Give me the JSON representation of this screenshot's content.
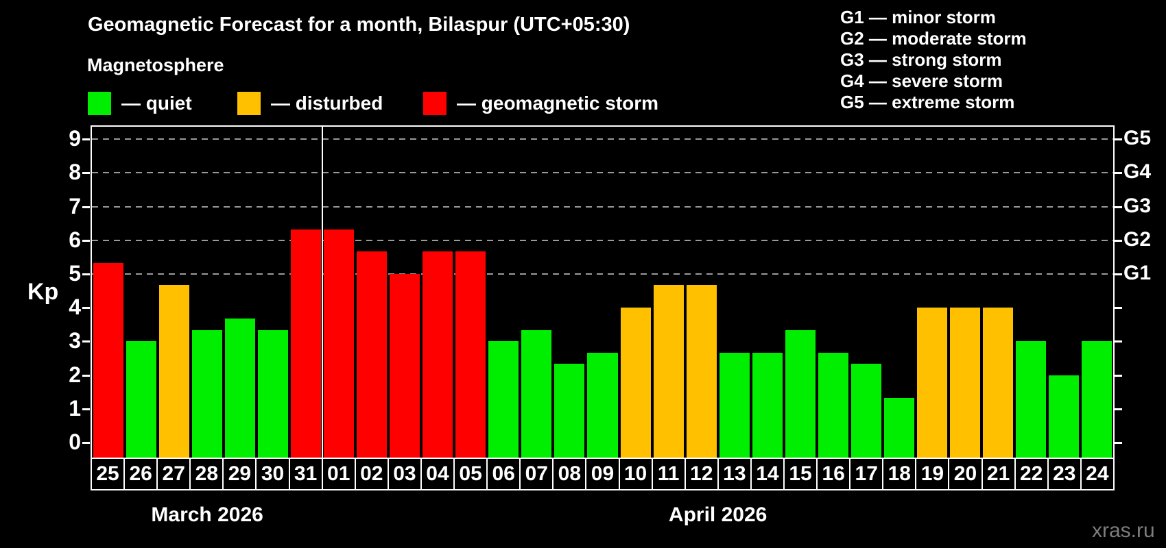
{
  "header": {
    "title": "Geomagnetic Forecast for a month, Bilaspur (UTC+05:30)",
    "subtitle": "Magnetosphere"
  },
  "legend": {
    "items": [
      {
        "key": "quiet",
        "label": "— quiet",
        "color": "#00ee00"
      },
      {
        "key": "disturbed",
        "label": "— disturbed",
        "color": "#ffc000"
      },
      {
        "key": "storm",
        "label": "— geomagnetic storm",
        "color": "#ff0000"
      }
    ]
  },
  "g_legend": [
    "G1 — minor storm",
    "G2 — moderate storm",
    "G3 — strong storm",
    "G4 — severe storm",
    "G5 — extreme storm"
  ],
  "watermark": "xras.ru",
  "chart_data": {
    "type": "bar",
    "title": "Geomagnetic Forecast for a month, Bilaspur (UTC+05:30)",
    "ylabel": "Kp",
    "ylim": [
      0,
      9
    ],
    "y_ticks": [
      0,
      1,
      2,
      3,
      4,
      5,
      6,
      7,
      8,
      9
    ],
    "grid": "dashed-horizontal",
    "grid_levels": [
      5,
      6,
      7,
      8,
      9
    ],
    "right_axis_labels": [
      "G1",
      "G2",
      "G3",
      "G4",
      "G5"
    ],
    "right_axis_levels": [
      5,
      6,
      7,
      8,
      9
    ],
    "legend_position": "top-left",
    "categories": [
      "25",
      "26",
      "27",
      "28",
      "29",
      "30",
      "31",
      "01",
      "02",
      "03",
      "04",
      "05",
      "06",
      "07",
      "08",
      "09",
      "10",
      "11",
      "12",
      "13",
      "14",
      "15",
      "16",
      "17",
      "18",
      "19",
      "20",
      "21",
      "22",
      "23",
      "24"
    ],
    "values": [
      5.33,
      3,
      4.67,
      3.33,
      3.67,
      3.33,
      6.33,
      6.33,
      5.67,
      5,
      5.67,
      5.67,
      3,
      3.33,
      2.33,
      2.67,
      4,
      4.67,
      4.67,
      2.67,
      2.67,
      3.33,
      2.67,
      2.33,
      1.33,
      4,
      4,
      4,
      3,
      2,
      3
    ],
    "statuses": [
      "storm",
      "quiet",
      "disturbed",
      "quiet",
      "quiet",
      "quiet",
      "storm",
      "storm",
      "storm",
      "storm",
      "storm",
      "storm",
      "quiet",
      "quiet",
      "quiet",
      "quiet",
      "disturbed",
      "disturbed",
      "disturbed",
      "quiet",
      "quiet",
      "quiet",
      "quiet",
      "quiet",
      "quiet",
      "disturbed",
      "disturbed",
      "disturbed",
      "quiet",
      "quiet",
      "quiet"
    ],
    "palette": {
      "quiet": "#00ee00",
      "disturbed": "#ffc000",
      "storm": "#ff0000"
    },
    "months": [
      {
        "label": "March 2026",
        "days": 7
      },
      {
        "label": "April 2026",
        "days": 24
      }
    ]
  }
}
